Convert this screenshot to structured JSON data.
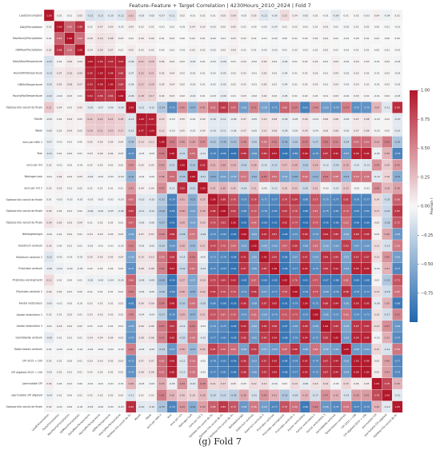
{
  "title": "Feature–Feature + Target Correlation | 4230Hours_2010_2024 | Fold 7",
  "caption": "(g) Fold 7",
  "chart_data": {
    "type": "heatmap",
    "title": "Feature–Feature + Target Correlation | 4230Hours_2010_2024 | Fold 7",
    "labels": [
      "LoadConsumption",
      "DailyPrecipitation",
      "MaxHourlyPrecipitation",
      "HDMeanPrecipitation",
      "DailyMeanTemperature",
      "HourlyMinTemperature",
      "HDMinTemperature",
      "HourlyMaxTemperature",
      "Optosse kilo vanuit de finale verbruiksgroep",
      "Month",
      "Week",
      "euro per kWh 2",
      "Year",
      "euro per m3",
      "Metingen kwh",
      "euro per m3 2",
      "Optosse kilo vanuit de finale verbruiksgroep",
      "Optosse kilo vanuit de finale verbruiksgroep 2",
      "Optosse kilo vanuit de finale finale bouwfase",
      "Nettoopbrengst",
      "Elektrisch verbruik",
      "Elektrisch verbruik 2",
      "Prijzindex verbruik",
      "Prijzindex woningmarkt",
      "Prijzindex verbruik 2",
      "Aantal verbruikers",
      "Aantal verbruikers 2",
      "Aantal verbruikers 3",
      "Gemiddelde verbruik",
      "Totale kosten verbruik",
      "CPI 2015 = 100",
      "CPI afgeleid 2015 = 100",
      "Jaarmutatie CPI",
      "Jaarmutatie CPI afgeleid",
      "Optosse kilo vanuit de finale verbruiksgroep 3"
    ],
    "values": [
      [
        1.0,
        0.02,
        0.01,
        0.05,
        -0.15,
        -0.13,
        -0.1,
        -0.12,
        0.21,
        -0.05,
        -0.05,
        -0.07,
        -0.11,
        0.02,
        -0.01,
        0.02,
        0.01,
        0.05,
        0.09,
        -0.02,
        0.05,
        -0.12,
        -0.06,
        0.13,
        0.04,
        -0.05,
        0.02,
        -0.01,
        -0.09,
        0.01,
        0.02,
        -0.03,
        0.04,
        -0.04,
        0.02
      ],
      [
        0.02,
        1.0,
        0.65,
        0.88,
        0.02,
        0.07,
        0.05,
        -0.02,
        0.04,
        0.02,
        0.02,
        -0.01,
        0.01,
        -0.01,
        0.04,
        0.03,
        -0.03,
        0.02,
        0.05,
        0.01,
        0.0,
        -0.02,
        -0.04,
        0.01,
        0.02,
        -0.01,
        0.01,
        0.03,
        0.01,
        -0.02,
        0.01,
        0.02,
        0.0,
        0.01,
        -0.01
      ],
      [
        0.01,
        0.65,
        1.0,
        0.62,
        0.06,
        0.1,
        0.08,
        0.03,
        0.02,
        0.04,
        0.04,
        0.01,
        0.02,
        0.0,
        0.02,
        0.01,
        -0.02,
        0.01,
        0.03,
        0.02,
        0.01,
        -0.01,
        -0.02,
        0.0,
        0.01,
        0.0,
        0.02,
        0.02,
        0.01,
        -0.01,
        0.0,
        0.01,
        0.01,
        0.0,
        0.0
      ],
      [
        0.05,
        0.88,
        0.62,
        1.0,
        0.04,
        0.09,
        0.07,
        0.01,
        0.05,
        0.03,
        0.03,
        0.0,
        0.01,
        -0.01,
        0.03,
        0.02,
        -0.02,
        0.02,
        0.04,
        0.01,
        0.01,
        -0.02,
        -0.03,
        0.01,
        0.02,
        -0.01,
        0.01,
        0.02,
        0.01,
        -0.01,
        0.01,
        0.01,
        0.0,
        0.01,
        -0.01
      ],
      [
        -0.15,
        0.02,
        0.06,
        0.04,
        1.0,
        0.95,
        0.93,
        0.94,
        -0.09,
        0.21,
        0.2,
        0.05,
        0.03,
        0.02,
        -0.04,
        0.01,
        -0.03,
        -0.06,
        0.01,
        0.03,
        -0.02,
        0.05,
        0.02,
        -0.05,
        0.01,
        0.02,
        0.03,
        0.01,
        0.04,
        -0.02,
        0.03,
        0.02,
        -0.01,
        0.02,
        -0.03
      ],
      [
        -0.13,
        0.07,
        0.1,
        0.09,
        0.95,
        1.0,
        0.98,
        0.86,
        -0.07,
        0.22,
        0.21,
        0.05,
        0.04,
        0.02,
        -0.03,
        0.01,
        -0.02,
        -0.05,
        0.02,
        0.03,
        -0.01,
        0.05,
        0.02,
        -0.04,
        0.01,
        0.02,
        0.03,
        0.01,
        0.04,
        -0.02,
        0.03,
        0.02,
        -0.01,
        0.02,
        -0.02
      ],
      [
        -0.1,
        0.05,
        0.08,
        0.07,
        0.93,
        0.98,
        1.0,
        0.84,
        -0.06,
        0.21,
        0.2,
        0.05,
        0.04,
        0.02,
        -0.03,
        0.01,
        -0.02,
        -0.05,
        0.02,
        0.03,
        -0.01,
        0.05,
        0.02,
        -0.04,
        0.01,
        0.02,
        0.03,
        0.01,
        0.04,
        -0.02,
        0.03,
        0.02,
        -0.01,
        0.02,
        -0.02
      ],
      [
        -0.12,
        -0.02,
        0.03,
        0.01,
        0.94,
        0.86,
        0.84,
        1.0,
        -0.09,
        0.18,
        0.17,
        0.04,
        0.03,
        0.02,
        -0.04,
        0.01,
        -0.03,
        -0.06,
        0.01,
        0.03,
        -0.02,
        0.04,
        0.02,
        -0.05,
        0.01,
        0.02,
        0.02,
        0.01,
        0.03,
        -0.02,
        0.03,
        0.02,
        -0.01,
        0.02,
        -0.03
      ],
      [
        0.21,
        0.04,
        0.02,
        0.05,
        -0.09,
        -0.07,
        -0.06,
        -0.09,
        1.0,
        -0.12,
        -0.12,
        -0.34,
        -0.73,
        0.45,
        -0.47,
        0.41,
        0.62,
        0.85,
        0.67,
        -0.62,
        0.52,
        -0.58,
        -0.71,
        0.66,
        0.54,
        -0.81,
        0.48,
        -0.63,
        -0.7,
        0.54,
        -0.72,
        -0.7,
        0.29,
        -0.11,
        0.9
      ],
      [
        -0.05,
        0.02,
        0.04,
        0.03,
        0.21,
        0.22,
        0.21,
        0.18,
        -0.12,
        1.0,
        0.97,
        0.13,
        -0.03,
        0.05,
        -0.02,
        0.04,
        -0.1,
        -0.11,
        -0.06,
        0.07,
        -0.05,
        0.1,
        0.08,
        -0.09,
        -0.05,
        0.09,
        -0.04,
        0.06,
        0.08,
        -0.05,
        0.07,
        0.08,
        -0.03,
        0.02,
        -0.1
      ],
      [
        -0.05,
        0.02,
        0.04,
        0.03,
        0.2,
        0.21,
        0.2,
        0.17,
        -0.12,
        0.97,
        1.0,
        0.13,
        -0.03,
        0.05,
        -0.02,
        0.04,
        -0.1,
        -0.11,
        -0.06,
        0.07,
        -0.05,
        0.1,
        0.08,
        -0.09,
        -0.05,
        0.09,
        -0.04,
        0.06,
        0.08,
        -0.05,
        0.07,
        0.08,
        -0.03,
        0.02,
        -0.1
      ],
      [
        -0.07,
        -0.01,
        0.01,
        0.0,
        0.05,
        0.05,
        0.05,
        0.04,
        -0.34,
        0.13,
        0.13,
        1.0,
        0.55,
        0.4,
        0.38,
        0.47,
        -0.32,
        -0.4,
        -0.37,
        0.48,
        -0.25,
        0.58,
        0.52,
        -0.46,
        -0.3,
        0.54,
        -0.27,
        0.55,
        0.51,
        -0.24,
        0.62,
        0.61,
        0.33,
        0.55,
        -0.35
      ],
      [
        -0.11,
        0.01,
        0.02,
        0.01,
        0.03,
        0.04,
        0.04,
        0.03,
        -0.73,
        -0.03,
        -0.03,
        0.55,
        1.0,
        -0.21,
        0.63,
        -0.11,
        -0.79,
        -0.85,
        -0.91,
        0.88,
        -0.69,
        0.86,
        0.97,
        -0.9,
        -0.8,
        0.96,
        -0.76,
        0.87,
        0.95,
        -0.67,
        0.96,
        0.96,
        -0.05,
        0.3,
        -0.79
      ],
      [
        0.02,
        -0.01,
        0.0,
        -0.01,
        0.02,
        0.02,
        0.02,
        0.02,
        0.45,
        0.05,
        0.05,
        0.4,
        -0.21,
        1.0,
        -0.33,
        0.92,
        0.31,
        0.36,
        0.29,
        -0.26,
        0.28,
        -0.15,
        -0.22,
        0.27,
        0.3,
        -0.3,
        0.29,
        -0.12,
        -0.2,
        0.3,
        -0.12,
        -0.13,
        0.44,
        0.2,
        0.43
      ],
      [
        -0.01,
        0.04,
        0.02,
        0.03,
        -0.04,
        -0.03,
        -0.03,
        -0.04,
        -0.47,
        -0.02,
        -0.02,
        0.38,
        0.63,
        -0.33,
        1.0,
        -0.21,
        -0.52,
        -0.61,
        -0.59,
        0.57,
        -0.42,
        0.55,
        0.61,
        -0.57,
        -0.5,
        0.6,
        -0.47,
        0.54,
        0.58,
        -0.43,
        0.59,
        0.58,
        -0.1,
        0.16,
        -0.52
      ],
      [
        0.02,
        0.03,
        0.01,
        0.02,
        0.01,
        0.01,
        0.01,
        0.01,
        0.41,
        0.04,
        0.04,
        0.47,
        -0.11,
        0.92,
        -0.21,
        1.0,
        0.25,
        0.3,
        0.2,
        -0.16,
        0.21,
        -0.05,
        -0.12,
        0.18,
        0.22,
        -0.2,
        0.21,
        -0.03,
        -0.1,
        0.22,
        -0.02,
        -0.03,
        0.48,
        0.28,
        0.39
      ],
      [
        0.01,
        -0.03,
        -0.02,
        -0.02,
        -0.03,
        -0.02,
        -0.02,
        -0.03,
        0.62,
        -0.1,
        -0.1,
        -0.32,
        -0.79,
        0.31,
        -0.52,
        0.25,
        1.0,
        0.88,
        0.76,
        -0.75,
        0.78,
        -0.71,
        -0.77,
        0.79,
        0.84,
        -0.8,
        0.73,
        -0.7,
        -0.77,
        0.81,
        -0.78,
        -0.77,
        0.14,
        -0.2,
        0.68
      ],
      [
        0.05,
        0.02,
        0.01,
        0.02,
        -0.06,
        -0.05,
        -0.05,
        -0.06,
        0.85,
        -0.11,
        -0.11,
        -0.4,
        -0.85,
        0.36,
        -0.61,
        0.3,
        0.88,
        1.0,
        0.82,
        -0.8,
        0.7,
        -0.76,
        -0.83,
        0.84,
        0.76,
        -0.88,
        0.67,
        -0.75,
        -0.82,
        0.7,
        -0.83,
        -0.82,
        0.17,
        -0.22,
        0.85
      ],
      [
        0.09,
        0.05,
        0.03,
        0.04,
        0.01,
        0.02,
        0.02,
        0.01,
        0.67,
        -0.06,
        -0.06,
        -0.37,
        -0.91,
        0.29,
        -0.59,
        0.2,
        0.76,
        0.82,
        1.0,
        -0.92,
        0.64,
        -0.88,
        -0.91,
        0.92,
        0.74,
        -0.93,
        0.7,
        -0.9,
        -0.89,
        0.62,
        -0.9,
        -0.89,
        0.05,
        -0.28,
        0.72
      ],
      [
        -0.02,
        0.01,
        0.02,
        0.01,
        0.03,
        0.03,
        0.03,
        0.03,
        -0.62,
        0.07,
        0.07,
        0.48,
        0.88,
        -0.26,
        0.57,
        -0.16,
        -0.75,
        -0.8,
        -0.92,
        1.0,
        -0.63,
        0.91,
        0.87,
        -0.9,
        -0.72,
        0.9,
        -0.7,
        0.92,
        0.86,
        -0.6,
        0.88,
        0.88,
        0.03,
        0.36,
        -0.66
      ],
      [
        0.05,
        0.0,
        0.01,
        0.01,
        -0.02,
        -0.01,
        -0.01,
        -0.02,
        0.52,
        -0.05,
        -0.05,
        -0.25,
        -0.69,
        0.28,
        -0.42,
        0.21,
        0.78,
        0.7,
        0.64,
        -0.63,
        1.0,
        -0.6,
        -0.66,
        0.67,
        0.86,
        -0.68,
        0.62,
        -0.58,
        -0.65,
        0.83,
        -0.67,
        -0.66,
        0.12,
        -0.15,
        0.56
      ],
      [
        -0.12,
        -0.02,
        -0.01,
        -0.02,
        0.05,
        0.05,
        0.05,
        0.04,
        -0.58,
        0.1,
        0.1,
        0.58,
        0.86,
        -0.15,
        0.55,
        -0.05,
        -0.71,
        -0.76,
        -0.88,
        0.91,
        -0.6,
        1.0,
        0.85,
        -0.86,
        -0.67,
        0.87,
        -0.64,
        0.89,
        0.84,
        -0.57,
        0.87,
        0.87,
        0.12,
        0.45,
        -0.62
      ],
      [
        -0.06,
        -0.04,
        -0.02,
        -0.03,
        0.02,
        0.02,
        0.02,
        0.02,
        -0.71,
        0.08,
        0.08,
        0.52,
        0.97,
        -0.22,
        0.61,
        -0.12,
        -0.77,
        -0.83,
        -0.91,
        0.87,
        -0.66,
        0.85,
        1.0,
        -0.89,
        -0.77,
        0.95,
        -0.74,
        0.86,
        0.94,
        -0.64,
        0.95,
        0.95,
        -0.04,
        0.31,
        -0.77
      ],
      [
        0.13,
        0.01,
        0.0,
        0.01,
        -0.05,
        -0.04,
        -0.04,
        -0.05,
        0.66,
        -0.09,
        -0.09,
        -0.46,
        -0.9,
        0.27,
        -0.57,
        0.18,
        0.79,
        0.84,
        0.92,
        -0.9,
        0.67,
        -0.86,
        -0.89,
        1.0,
        0.76,
        -0.91,
        0.71,
        -0.87,
        -0.88,
        0.65,
        -0.89,
        -0.88,
        0.02,
        -0.33,
        0.73
      ],
      [
        0.04,
        0.02,
        0.01,
        0.02,
        0.01,
        0.01,
        0.01,
        0.01,
        0.54,
        -0.05,
        -0.05,
        -0.3,
        -0.8,
        0.3,
        -0.5,
        0.22,
        0.84,
        0.76,
        0.74,
        -0.72,
        0.86,
        -0.67,
        -0.77,
        0.76,
        1.0,
        -0.79,
        0.73,
        -0.69,
        -0.76,
        0.88,
        -0.78,
        -0.77,
        0.13,
        -0.18,
        0.6
      ],
      [
        -0.05,
        -0.01,
        0.0,
        -0.01,
        0.02,
        0.02,
        0.02,
        0.02,
        -0.81,
        0.09,
        0.09,
        0.54,
        0.96,
        -0.3,
        0.6,
        -0.2,
        -0.8,
        -0.88,
        -0.93,
        0.9,
        -0.68,
        0.87,
        0.95,
        -0.91,
        -0.79,
        1.0,
        -0.75,
        0.88,
        0.94,
        -0.66,
        0.95,
        0.95,
        -0.08,
        0.3,
        -0.86
      ],
      [
        0.02,
        0.01,
        0.02,
        0.01,
        0.03,
        0.03,
        0.03,
        0.02,
        0.48,
        -0.04,
        -0.04,
        -0.27,
        -0.76,
        0.29,
        -0.47,
        0.21,
        0.73,
        0.67,
        0.7,
        -0.7,
        0.62,
        -0.64,
        -0.74,
        0.71,
        0.73,
        -0.75,
        1.0,
        -0.66,
        -0.72,
        0.6,
        -0.74,
        -0.73,
        0.1,
        -0.17,
        0.52
      ],
      [
        -0.01,
        0.03,
        0.02,
        0.02,
        0.01,
        0.01,
        0.01,
        0.01,
        -0.63,
        0.06,
        0.06,
        0.55,
        0.87,
        -0.12,
        0.54,
        -0.03,
        -0.7,
        -0.75,
        -0.9,
        0.92,
        -0.58,
        0.89,
        0.86,
        -0.87,
        -0.69,
        0.88,
        -0.66,
        1.0,
        0.85,
        -0.56,
        0.87,
        0.87,
        0.14,
        0.47,
        -0.66
      ],
      [
        -0.09,
        0.01,
        0.01,
        0.01,
        0.04,
        0.04,
        0.04,
        0.03,
        -0.7,
        0.08,
        0.08,
        0.51,
        0.95,
        -0.2,
        0.58,
        -0.1,
        -0.77,
        -0.82,
        -0.89,
        0.86,
        -0.65,
        0.84,
        0.94,
        -0.88,
        -0.76,
        0.94,
        -0.72,
        0.85,
        1.0,
        -0.63,
        0.94,
        0.94,
        -0.03,
        0.32,
        -0.75
      ],
      [
        0.01,
        -0.02,
        -0.01,
        -0.01,
        -0.02,
        -0.02,
        -0.02,
        -0.02,
        0.54,
        -0.05,
        -0.05,
        -0.24,
        -0.67,
        0.3,
        -0.43,
        0.22,
        0.81,
        0.7,
        0.62,
        -0.6,
        0.83,
        -0.57,
        -0.64,
        0.65,
        0.88,
        -0.66,
        0.6,
        -0.56,
        -0.63,
        1.0,
        -0.65,
        -0.64,
        0.15,
        -0.14,
        0.58
      ],
      [
        0.02,
        0.01,
        0.0,
        0.01,
        0.03,
        0.03,
        0.03,
        0.03,
        -0.72,
        0.07,
        0.07,
        0.62,
        0.96,
        -0.12,
        0.59,
        -0.02,
        -0.78,
        -0.83,
        -0.9,
        0.88,
        -0.67,
        0.87,
        0.95,
        -0.89,
        -0.78,
        0.95,
        -0.74,
        0.87,
        0.94,
        -0.65,
        1.0,
        0.99,
        0.05,
        0.4,
        -0.77
      ],
      [
        -0.03,
        0.02,
        0.01,
        0.01,
        0.02,
        0.02,
        0.02,
        0.02,
        -0.7,
        0.08,
        0.08,
        0.61,
        0.96,
        -0.13,
        0.58,
        -0.03,
        -0.77,
        -0.82,
        -0.89,
        0.88,
        -0.66,
        0.87,
        0.95,
        -0.88,
        -0.77,
        0.95,
        -0.73,
        0.87,
        0.94,
        -0.64,
        0.99,
        1.0,
        0.05,
        0.41,
        -0.75
      ],
      [
        0.04,
        0.0,
        0.01,
        0.0,
        -0.01,
        -0.01,
        -0.01,
        -0.01,
        0.29,
        -0.03,
        -0.03,
        0.33,
        -0.05,
        0.44,
        -0.1,
        0.48,
        0.14,
        0.17,
        0.05,
        0.03,
        0.12,
        0.12,
        -0.04,
        0.02,
        0.13,
        -0.08,
        0.1,
        0.14,
        -0.03,
        0.15,
        0.05,
        0.05,
        1.0,
        0.78,
        0.3
      ],
      [
        -0.04,
        0.01,
        0.0,
        0.01,
        0.02,
        0.02,
        0.02,
        0.02,
        -0.11,
        0.02,
        0.02,
        0.55,
        0.3,
        0.2,
        0.16,
        0.28,
        -0.2,
        -0.22,
        -0.28,
        0.36,
        -0.15,
        0.45,
        0.31,
        -0.33,
        -0.18,
        0.3,
        -0.17,
        0.47,
        0.32,
        -0.14,
        0.4,
        0.41,
        0.78,
        1.0,
        -0.1
      ],
      [
        0.02,
        -0.01,
        0.0,
        -0.01,
        -0.03,
        -0.02,
        -0.02,
        -0.03,
        0.9,
        -0.1,
        -0.1,
        -0.35,
        -0.79,
        0.43,
        -0.52,
        0.39,
        0.68,
        0.85,
        0.72,
        -0.66,
        0.56,
        -0.62,
        -0.77,
        0.73,
        0.6,
        -0.86,
        0.52,
        -0.66,
        -0.75,
        0.58,
        -0.77,
        -0.75,
        0.3,
        -0.1,
        1.0
      ]
    ],
    "colorbar": {
      "label": "Pearson r",
      "ticks": [
        "1.00",
        "0.75",
        "0.50",
        "0.25",
        "0.00",
        "−0.25",
        "−0.50",
        "−0.75"
      ],
      "range": [
        -1,
        1
      ],
      "colormap": "RdBu (blue = −1, white = 0, red = +1)"
    },
    "colors": {
      "negative": "#2166ac",
      "neutral": "#f7f7f7",
      "positive": "#b2182b"
    }
  }
}
